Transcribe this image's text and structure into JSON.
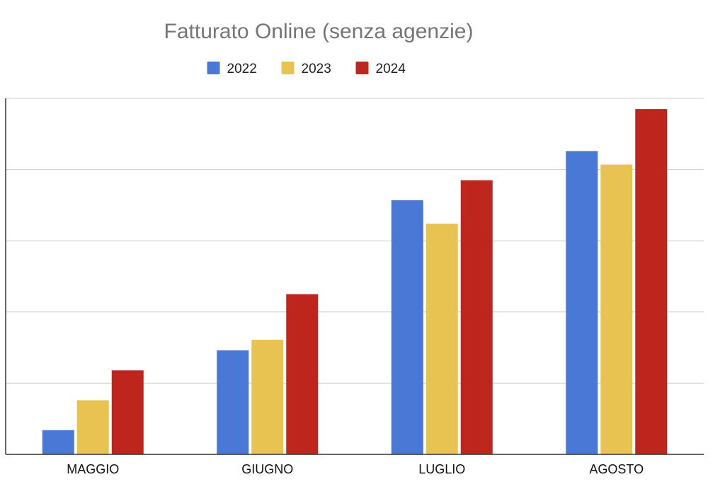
{
  "chart_data": {
    "type": "bar",
    "title": "Fatturato Online (senza agenzie)",
    "xlabel": "",
    "ylabel": "",
    "categories": [
      "MAGGIO",
      "GIUGNO",
      "LUGLIO",
      "AGOSTO"
    ],
    "series": [
      {
        "name": "2022",
        "color": "#4a78d6",
        "values": [
          0.34,
          1.46,
          3.57,
          4.26
        ]
      },
      {
        "name": "2023",
        "color": "#e8c352",
        "values": [
          0.76,
          1.61,
          3.24,
          4.07
        ]
      },
      {
        "name": "2024",
        "color": "#bd261d",
        "values": [
          1.18,
          2.25,
          3.85,
          4.85
        ]
      }
    ],
    "ylim": [
      0,
      5
    ],
    "grid": true,
    "legend": "top-center"
  }
}
